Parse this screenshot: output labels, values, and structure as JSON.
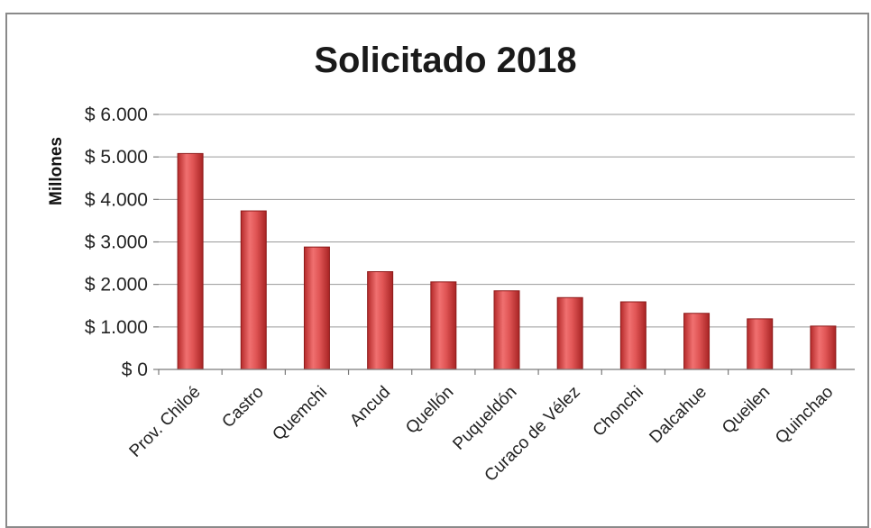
{
  "chart_data": {
    "type": "bar",
    "title": "Solicitado 2018",
    "ylabel": "Millones",
    "xlabel": "",
    "categories": [
      "Prov. Chiloé",
      "Castro",
      "Quemchi",
      "Ancud",
      "Quellón",
      "Puqueldón",
      "Curaco de Vélez",
      "Chonchi",
      "Dalcahue",
      "Queilen",
      "Quinchao"
    ],
    "values": [
      5080,
      3730,
      2880,
      2300,
      2060,
      1850,
      1690,
      1590,
      1320,
      1190,
      1020
    ],
    "ylim": [
      0,
      6000
    ],
    "yticks": [
      0,
      1000,
      2000,
      3000,
      4000,
      5000,
      6000
    ],
    "ytick_labels": [
      "$ 0",
      "$ 1.000",
      "$ 2.000",
      "$ 3.000",
      "$ 4.000",
      "$ 5.000",
      "$ 6.000"
    ],
    "grid": true,
    "legend": "none",
    "bar_color": "#d94a4a"
  }
}
